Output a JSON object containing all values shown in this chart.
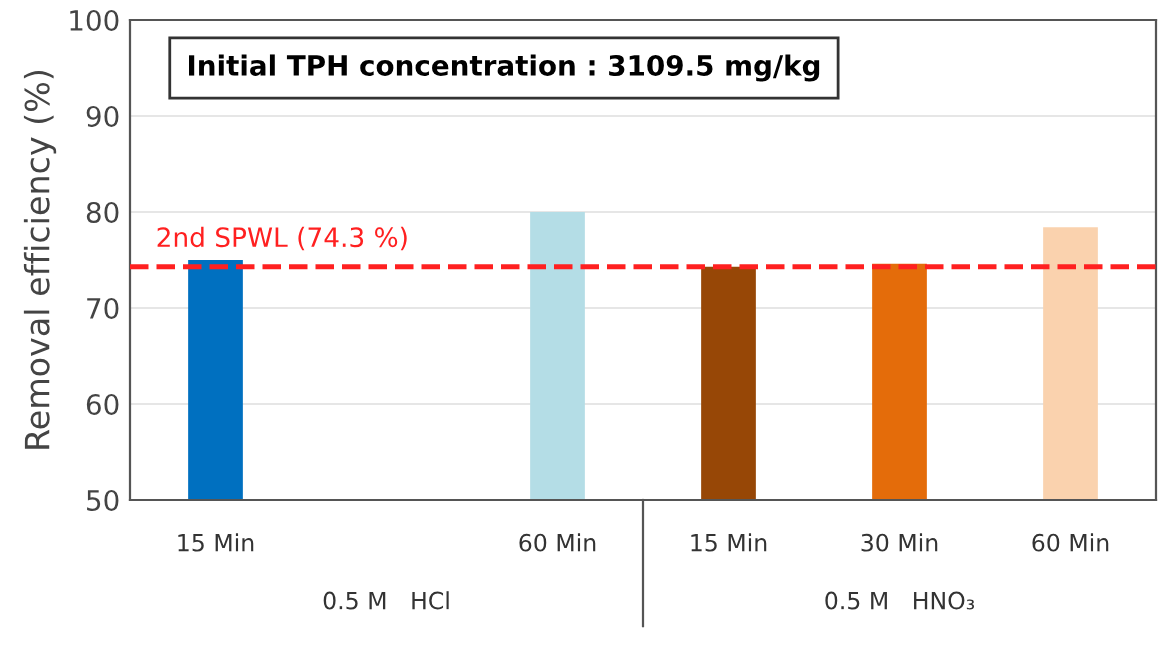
{
  "chart_data": {
    "type": "bar",
    "ylabel": "Removal efficiency (%)",
    "categories": [
      "15 Min",
      null,
      "60 Min",
      "15 Min",
      "30 Min",
      "60 Min"
    ],
    "values": [
      75.0,
      null,
      80.0,
      74.3,
      74.6,
      78.4
    ],
    "colors": [
      "#0070c0",
      null,
      "#b4dde6",
      "#974706",
      "#e46c0a",
      "#fad2ae"
    ],
    "ylim": [
      50,
      100
    ],
    "yticks": [
      50,
      60,
      70,
      80,
      90,
      100
    ],
    "grid": "y",
    "ref_lines": [
      {
        "axis": "y",
        "value": 74.3,
        "label": "2nd SPWL (74.3 %)",
        "color": "#ff2020",
        "line_style": "dashed"
      }
    ],
    "annotations": [
      "Initial TPH concentration : 3109.5 mg/kg",
      "0.5 M   HCl",
      "0.5 M   HNO₃"
    ]
  }
}
